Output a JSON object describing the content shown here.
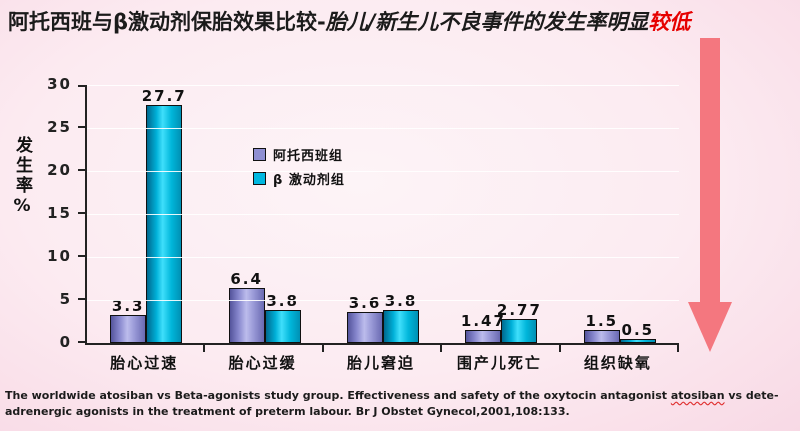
{
  "slide": {
    "title": {
      "part1": "阿托西班与β激动剂保胎效果比较-",
      "part2": "胎儿/新生儿不良事件的发生率明显",
      "highlight": "较低",
      "highlight_color": "#e60000"
    },
    "arrow": {
      "direction": "down",
      "color": "#f4777f"
    },
    "footnote": {
      "before": "The worldwide atosiban vs Beta-agonists study group. Effectiveness and safety of the oxytocin antagonist ",
      "misspelled_word": "atosiban",
      "after": " vs dete-adrenergic agonists in the treatment of preterm labour. Br J Obstet Gynecol,2001,108:133."
    }
  },
  "chart_data": {
    "type": "bar",
    "title": "",
    "categories": [
      "胎心过速",
      "胎心过缓",
      "胎儿窘迫",
      "围产儿死亡",
      "组织缺氧"
    ],
    "series": [
      {
        "name": "阿托西班组",
        "color": "#8f8fd2",
        "values": [
          3.3,
          6.4,
          3.6,
          1.47,
          1.5
        ],
        "labels": [
          "3.3",
          "6.4",
          "3.6",
          "1.47",
          "1.5"
        ]
      },
      {
        "name": "β 激动剂组",
        "color": "#00b8e0",
        "values": [
          27.7,
          3.8,
          3.8,
          2.77,
          0.5
        ],
        "labels": [
          "27.7",
          "3.8",
          "3.8",
          "2.77",
          "0.5"
        ]
      }
    ],
    "xlabel": "",
    "ylabel": "发生率%",
    "ylim": [
      0,
      30
    ],
    "yticks": [
      0,
      5,
      10,
      15,
      20,
      25,
      30
    ],
    "grid": true,
    "legend_position": "inside-top-center"
  }
}
